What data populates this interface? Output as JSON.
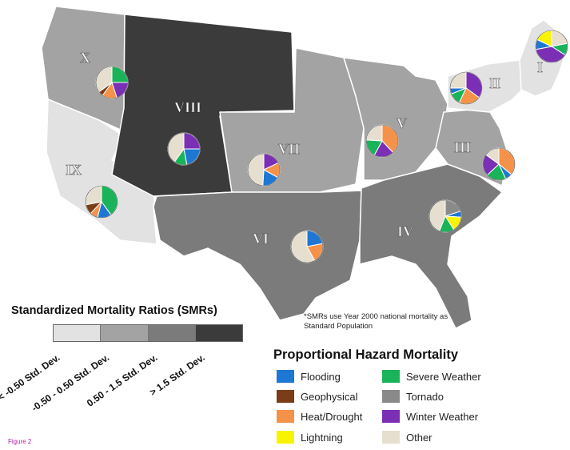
{
  "colors": {
    "smr_low": "#e2e2e2",
    "smr_mid": "#a3a3a3",
    "smr_high": "#7b7b7b",
    "smr_very_high": "#3b3b3b",
    "background": "#ffffff",
    "figure_label": "#b020b0"
  },
  "hazards": [
    {
      "key": "flooding",
      "label": "Flooding",
      "color": "#1f77d4"
    },
    {
      "key": "geophysical",
      "label": "Geophysical",
      "color": "#7a3d17"
    },
    {
      "key": "heat",
      "label": "Heat/Drought",
      "color": "#f5924a"
    },
    {
      "key": "lightning",
      "label": "Lightning",
      "color": "#f8f400"
    },
    {
      "key": "severe",
      "label": "Severe Weather",
      "color": "#1ab359"
    },
    {
      "key": "tornado",
      "label": "Tornado",
      "color": "#8a8a8a"
    },
    {
      "key": "winter",
      "label": "Winter Weather",
      "color": "#7a2fb5"
    },
    {
      "key": "other",
      "label": "Other",
      "color": "#e6dfcf"
    }
  ],
  "legend": {
    "smr_title": "Standardized Mortality Ratios (SMRs)",
    "smr_categories": [
      "< -0.50 Std. Dev.",
      "-0.50 - 0.50 Std. Dev.",
      "0.50 - 1.5 Std. Dev.",
      "> 1.5 Std. Dev."
    ],
    "smr_note": "*SMRs use Year 2000 national mortality as Standard Population",
    "hazard_title": "Proportional Hazard Mortality"
  },
  "figure_label": "Figure 2",
  "regions": [
    {
      "numeral": "I",
      "smr": "< -0.50 Std. Dev.",
      "pie": [
        {
          "hazard": "other",
          "value": 0.22
        },
        {
          "hazard": "severe",
          "value": 0.12
        },
        {
          "hazard": "winter",
          "value": 0.38
        },
        {
          "hazard": "flooding",
          "value": 0.1
        },
        {
          "hazard": "lightning",
          "value": 0.18
        }
      ]
    },
    {
      "numeral": "II",
      "smr": "< -0.50 Std. Dev.",
      "pie": [
        {
          "hazard": "winter",
          "value": 0.35
        },
        {
          "hazard": "heat",
          "value": 0.22
        },
        {
          "hazard": "severe",
          "value": 0.12
        },
        {
          "hazard": "flooding",
          "value": 0.06
        },
        {
          "hazard": "other",
          "value": 0.25
        }
      ]
    },
    {
      "numeral": "III",
      "smr": "-0.50 - 0.50 Std. Dev.",
      "pie": [
        {
          "hazard": "heat",
          "value": 0.36
        },
        {
          "hazard": "flooding",
          "value": 0.07
        },
        {
          "hazard": "severe",
          "value": 0.2
        },
        {
          "hazard": "winter",
          "value": 0.22
        },
        {
          "hazard": "other",
          "value": 0.15
        }
      ]
    },
    {
      "numeral": "IV",
      "smr": "0.50 - 1.5 Std. Dev.",
      "pie": [
        {
          "hazard": "tornado",
          "value": 0.2
        },
        {
          "hazard": "flooding",
          "value": 0.06
        },
        {
          "hazard": "lightning",
          "value": 0.15
        },
        {
          "hazard": "severe",
          "value": 0.15
        },
        {
          "hazard": "other",
          "value": 0.44
        }
      ]
    },
    {
      "numeral": "V",
      "smr": "-0.50 - 0.50 Std. Dev.",
      "pie": [
        {
          "hazard": "heat",
          "value": 0.38
        },
        {
          "hazard": "winter",
          "value": 0.2
        },
        {
          "hazard": "severe",
          "value": 0.18
        },
        {
          "hazard": "other",
          "value": 0.24
        }
      ]
    },
    {
      "numeral": "VI",
      "smr": "0.50 - 1.5 Std. Dev.",
      "pie": [
        {
          "hazard": "flooding",
          "value": 0.22
        },
        {
          "hazard": "heat",
          "value": 0.2
        },
        {
          "hazard": "other",
          "value": 0.58
        }
      ]
    },
    {
      "numeral": "VII",
      "smr": "-0.50 - 0.50 Std. Dev.",
      "pie": [
        {
          "hazard": "winter",
          "value": 0.18
        },
        {
          "hazard": "heat",
          "value": 0.15
        },
        {
          "hazard": "flooding",
          "value": 0.18
        },
        {
          "hazard": "other",
          "value": 0.49
        }
      ]
    },
    {
      "numeral": "VIII",
      "smr": "> 1.5 Std. Dev.",
      "pie": [
        {
          "hazard": "winter",
          "value": 0.25
        },
        {
          "hazard": "flooding",
          "value": 0.22
        },
        {
          "hazard": "severe",
          "value": 0.13
        },
        {
          "hazard": "other",
          "value": 0.4
        }
      ]
    },
    {
      "numeral": "IX",
      "smr": "< -0.50 Std. Dev.",
      "pie": [
        {
          "hazard": "severe",
          "value": 0.4
        },
        {
          "hazard": "flooding",
          "value": 0.14
        },
        {
          "hazard": "heat",
          "value": 0.08
        },
        {
          "hazard": "geophysical",
          "value": 0.1
        },
        {
          "hazard": "other",
          "value": 0.28
        }
      ]
    },
    {
      "numeral": "X",
      "smr": "-0.50 - 0.50 Std. Dev.",
      "pie": [
        {
          "hazard": "severe",
          "value": 0.25
        },
        {
          "hazard": "winter",
          "value": 0.2
        },
        {
          "hazard": "heat",
          "value": 0.15
        },
        {
          "hazard": "geophysical",
          "value": 0.05
        },
        {
          "hazard": "other",
          "value": 0.35
        }
      ]
    }
  ]
}
